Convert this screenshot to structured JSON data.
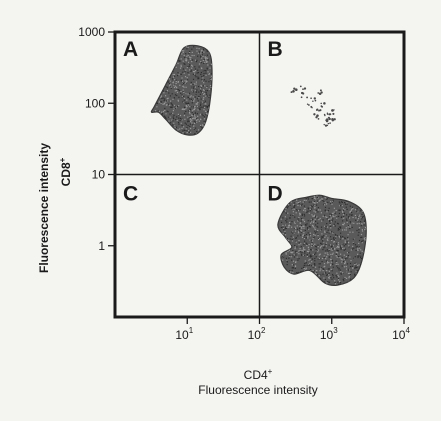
{
  "chart_data": {
    "type": "scatter",
    "subtype": "flow-cytometry quadrant dot plot",
    "x_scale": "log",
    "y_scale": "log",
    "xlim": [
      1,
      10000
    ],
    "ylim": [
      0.1,
      1000
    ],
    "x_ticks": [
      {
        "value": 10,
        "base": "10",
        "exp": "1"
      },
      {
        "value": 100,
        "base": "10",
        "exp": "2"
      },
      {
        "value": 1000,
        "base": "10",
        "exp": "3"
      },
      {
        "value": 10000,
        "base": "10",
        "exp": "4"
      }
    ],
    "y_ticks": [
      {
        "value": 1,
        "label": "1"
      },
      {
        "value": 10,
        "label": "10"
      },
      {
        "value": 100,
        "label": "100"
      },
      {
        "value": 1000,
        "label": "1000"
      }
    ],
    "quadrant_dividers": {
      "x": 100,
      "y": 10
    },
    "quadrants": [
      {
        "label": "A",
        "position": "top-left"
      },
      {
        "label": "B",
        "position": "top-right"
      },
      {
        "label": "C",
        "position": "bottom-left"
      },
      {
        "label": "D",
        "position": "bottom-right"
      }
    ],
    "xlabel": {
      "main": "CD4",
      "sup": "+",
      "sub": "Fluorescence intensity"
    },
    "ylabel": {
      "main": "CD8",
      "sup": "+",
      "sub": "Fluorescence intensity"
    },
    "populations": [
      {
        "quadrant": "A",
        "density": "dense",
        "outline": [
          [
            5,
            180
          ],
          [
            7,
            350
          ],
          [
            9,
            600
          ],
          [
            14,
            640
          ],
          [
            20,
            520
          ],
          [
            22,
            300
          ],
          [
            21,
            120
          ],
          [
            18,
            55
          ],
          [
            14,
            38
          ],
          [
            10,
            36
          ],
          [
            7,
            42
          ],
          [
            5,
            60
          ],
          [
            4,
            75
          ],
          [
            3.2,
            75
          ],
          [
            3.5,
            90
          ]
        ]
      },
      {
        "quadrant": "B",
        "density": "sparse",
        "center_points": [
          [
            300,
            150
          ],
          [
            420,
            130
          ],
          [
            500,
            90
          ],
          [
            550,
            115
          ],
          [
            700,
            140
          ],
          [
            650,
            80
          ],
          [
            800,
            70
          ],
          [
            900,
            60
          ],
          [
            1000,
            55
          ],
          [
            1100,
            75
          ],
          [
            750,
            95
          ],
          [
            850,
            50
          ],
          [
            950,
            65
          ],
          [
            400,
            160
          ],
          [
            600,
            65
          ]
        ]
      },
      {
        "quadrant": "D",
        "density": "dense",
        "outline": [
          [
            180,
            2.0
          ],
          [
            260,
            4.0
          ],
          [
            450,
            4.8
          ],
          [
            700,
            5.1
          ],
          [
            1000,
            4.6
          ],
          [
            1700,
            4.2
          ],
          [
            2700,
            3.0
          ],
          [
            3000,
            1.5
          ],
          [
            2600,
            0.6
          ],
          [
            2000,
            0.35
          ],
          [
            1200,
            0.28
          ],
          [
            800,
            0.3
          ],
          [
            500,
            0.45
          ],
          [
            300,
            0.4
          ],
          [
            220,
            0.5
          ],
          [
            200,
            0.75
          ],
          [
            280,
            0.95
          ],
          [
            230,
            1.3
          ]
        ]
      }
    ],
    "grid": false,
    "legend": "none"
  }
}
